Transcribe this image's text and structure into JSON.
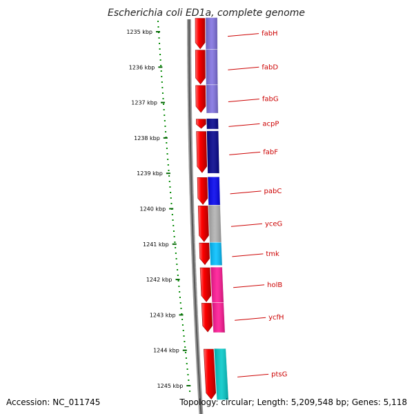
{
  "title": "Escherichia coli ED1a, complete genome",
  "footer": {
    "accession": "Accession: NC_011745",
    "topology": "Topology: circular; Length: 5,209,548 bp; Genes: 5,118"
  },
  "scale": {
    "unit": "kbp",
    "ticks": [
      {
        "kbp": 1235,
        "label": "1235 kbp"
      },
      {
        "kbp": 1236,
        "label": "1236 kbp"
      },
      {
        "kbp": 1237,
        "label": "1237 kbp"
      },
      {
        "kbp": 1238,
        "label": "1238 kbp"
      },
      {
        "kbp": 1239,
        "label": "1239 kbp"
      },
      {
        "kbp": 1240,
        "label": "1240 kbp"
      },
      {
        "kbp": 1241,
        "label": "1241 kbp"
      },
      {
        "kbp": 1242,
        "label": "1242 kbp"
      },
      {
        "kbp": 1243,
        "label": "1243 kbp"
      },
      {
        "kbp": 1244,
        "label": "1244 kbp"
      },
      {
        "kbp": 1245,
        "label": "1245 kbp"
      }
    ]
  },
  "genes": [
    {
      "name": "fabH",
      "start_kbp": 1234.6,
      "end_kbp": 1235.5,
      "color": "#7f70e0"
    },
    {
      "name": "fabD",
      "start_kbp": 1235.5,
      "end_kbp": 1236.5,
      "color": "#7f70e0"
    },
    {
      "name": "fabG",
      "start_kbp": 1236.5,
      "end_kbp": 1237.3,
      "color": "#7f70e0"
    },
    {
      "name": "acpP",
      "start_kbp": 1237.45,
      "end_kbp": 1237.75,
      "color": "#00008b"
    },
    {
      "name": "fabF",
      "start_kbp": 1237.8,
      "end_kbp": 1239.0,
      "color": "#00008b"
    },
    {
      "name": "pabC",
      "start_kbp": 1239.1,
      "end_kbp": 1239.9,
      "color": "#0000ee"
    },
    {
      "name": "yceG",
      "start_kbp": 1239.9,
      "end_kbp": 1240.95,
      "color": "#b0b0b0"
    },
    {
      "name": "tmk",
      "start_kbp": 1240.95,
      "end_kbp": 1241.6,
      "color": "#00bfff"
    },
    {
      "name": "holB",
      "start_kbp": 1241.65,
      "end_kbp": 1242.65,
      "color": "#ff1493"
    },
    {
      "name": "ycfH",
      "start_kbp": 1242.65,
      "end_kbp": 1243.5,
      "color": "#ff1493"
    },
    {
      "name": "ptsG",
      "start_kbp": 1243.95,
      "end_kbp": 1245.4,
      "color": "#00c8c8"
    }
  ],
  "colors": {
    "gene_arrow": "#ff0000",
    "backbone": "#777777",
    "label_line": "#cc0000",
    "ruler_dots": "#008800"
  }
}
